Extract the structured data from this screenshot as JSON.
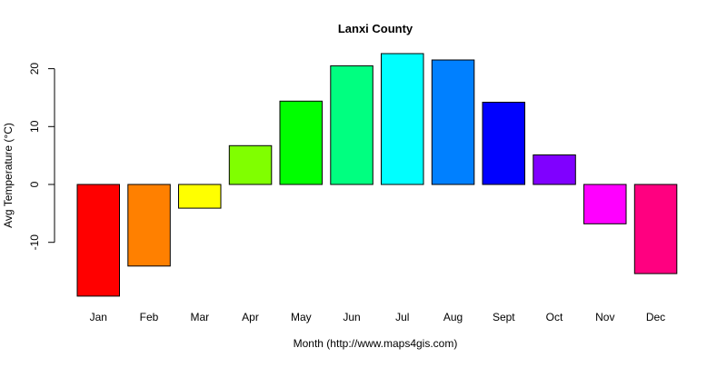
{
  "chart_data": {
    "type": "bar",
    "title": "Lanxi County",
    "xlabel": "Month (http://www.maps4gis.com)",
    "ylabel": "Avg Temperature (°C)",
    "categories": [
      "Jan",
      "Feb",
      "Mar",
      "Apr",
      "May",
      "Jun",
      "Jul",
      "Aug",
      "Sept",
      "Oct",
      "Nov",
      "Dec"
    ],
    "values": [
      -19.3,
      -14.1,
      -4.1,
      6.7,
      14.4,
      20.5,
      22.6,
      21.5,
      14.2,
      5.1,
      -6.8,
      -15.4
    ],
    "colors": [
      "#FF0000",
      "#FF8000",
      "#FFFF00",
      "#80FF00",
      "#00FF00",
      "#00FF80",
      "#00FFFF",
      "#0080FF",
      "#0000FF",
      "#8000FF",
      "#FF00FF",
      "#FF0080"
    ],
    "yticks": [
      -10,
      0,
      10,
      20
    ],
    "ylim": [
      -19.3,
      22.6
    ],
    "grid": false,
    "legend": null
  }
}
